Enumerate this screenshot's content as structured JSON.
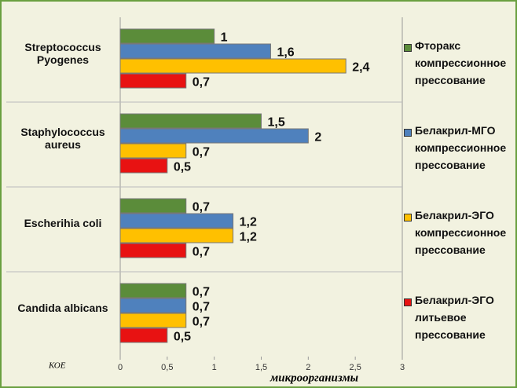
{
  "chart_data": {
    "type": "bar",
    "orientation": "horizontal",
    "categories": [
      "Streptococcus Pyogenes",
      "Staphylococcus aureus",
      "Escherihia coli",
      "Candida albicans"
    ],
    "series": [
      {
        "name": "Фторакс компрессионное прессование",
        "color": "#5b8c3a",
        "values": [
          1,
          1.5,
          0.7,
          0.7
        ],
        "value_labels": [
          "1",
          "1,5",
          "0,7",
          "0,7"
        ]
      },
      {
        "name": "Белакрил-МГО компрессионное прессование",
        "color": "#4f81bd",
        "values": [
          1.6,
          2,
          1.2,
          0.7
        ],
        "value_labels": [
          "1,6",
          "2",
          "1,2",
          "0,7"
        ]
      },
      {
        "name": "Белакрил-ЭГО компрессионное прессование",
        "color": "#ffc000",
        "values": [
          2.4,
          0.7,
          1.2,
          0.7
        ],
        "value_labels": [
          "2,4",
          "0,7",
          "1,2",
          "0,7"
        ]
      },
      {
        "name": "Белакрил-ЭГО литьевое прессование",
        "color": "#e81212",
        "values": [
          0.7,
          0.5,
          0.7,
          0.5
        ],
        "value_labels": [
          "0,7",
          "0,5",
          "0,7",
          "0,5"
        ]
      }
    ],
    "xlim": [
      0,
      3
    ],
    "xticks": [
      0,
      {
        "value": 0.5,
        "label": "0,5"
      },
      1,
      {
        "value": 1.5,
        "label": "1,5"
      },
      2,
      {
        "value": 2.5,
        "label": "2,5"
      },
      3
    ],
    "x_label": "микроорганизмы",
    "y_label": "КОЕ"
  }
}
